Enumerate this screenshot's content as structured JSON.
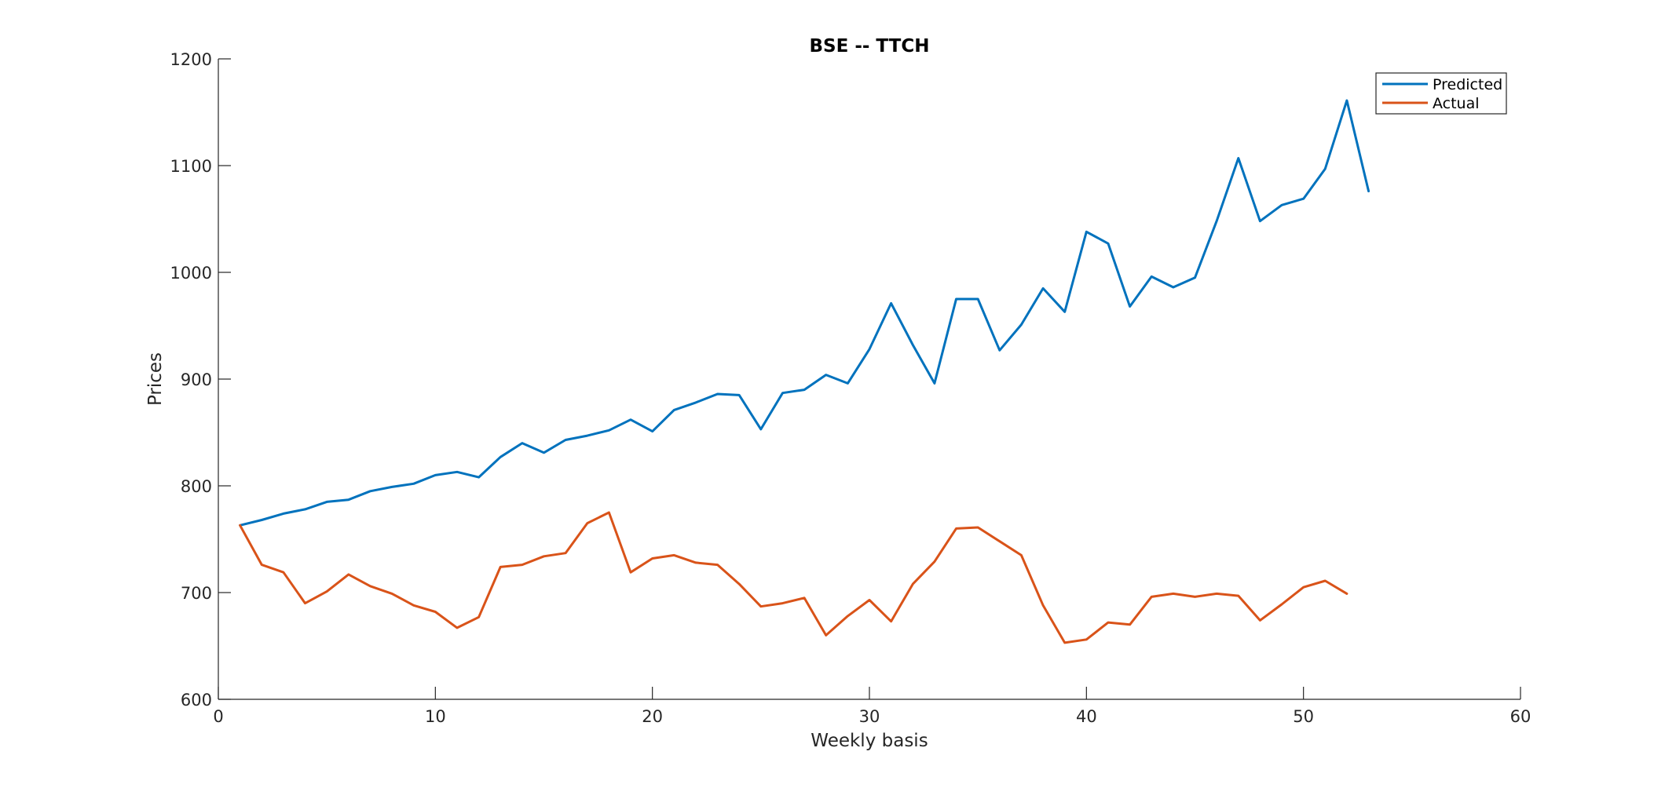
{
  "chart_data": {
    "type": "line",
    "title": "BSE -- TTCH",
    "xlabel": "Weekly basis",
    "ylabel": "Prices",
    "xlim": [
      0,
      60
    ],
    "ylim": [
      600,
      1200
    ],
    "xticks": [
      0,
      10,
      20,
      30,
      40,
      50,
      60
    ],
    "yticks": [
      600,
      700,
      800,
      900,
      1000,
      1100,
      1200
    ],
    "grid": false,
    "legend_position": "top-right",
    "series": [
      {
        "name": "Predicted",
        "color": "#0072BD",
        "x": [
          1,
          2,
          3,
          4,
          5,
          6,
          7,
          8,
          9,
          10,
          11,
          12,
          13,
          14,
          15,
          16,
          17,
          18,
          19,
          20,
          21,
          22,
          23,
          24,
          25,
          26,
          27,
          28,
          29,
          30,
          31,
          32,
          33,
          34,
          35,
          36,
          37,
          38,
          39,
          40,
          41,
          42,
          43,
          44,
          45,
          46,
          47,
          48,
          49,
          50,
          51,
          52,
          53
        ],
        "values": [
          763,
          768,
          774,
          778,
          785,
          787,
          795,
          799,
          802,
          810,
          813,
          808,
          827,
          840,
          831,
          843,
          847,
          852,
          862,
          851,
          871,
          878,
          886,
          885,
          853,
          887,
          890,
          904,
          896,
          928,
          971,
          932,
          896,
          975,
          975,
          927,
          951,
          985,
          963,
          1038,
          1027,
          968,
          996,
          986,
          995,
          1048,
          1107,
          1048,
          1063,
          1069,
          1097,
          1161,
          1076
        ]
      },
      {
        "name": "Actual",
        "color": "#D95319",
        "x": [
          1,
          2,
          3,
          4,
          5,
          6,
          7,
          8,
          9,
          10,
          11,
          12,
          13,
          14,
          15,
          16,
          17,
          18,
          19,
          20,
          21,
          22,
          23,
          24,
          25,
          26,
          27,
          28,
          29,
          30,
          31,
          32,
          33,
          34,
          35,
          36,
          37,
          38,
          39,
          40,
          41,
          42,
          43,
          44,
          45,
          46,
          47,
          48,
          49,
          50,
          51,
          52
        ],
        "values": [
          763,
          726,
          719,
          690,
          701,
          717,
          706,
          699,
          688,
          682,
          667,
          677,
          724,
          726,
          734,
          737,
          765,
          775,
          719,
          732,
          735,
          728,
          726,
          708,
          687,
          690,
          695,
          660,
          678,
          693,
          673,
          708,
          729,
          760,
          761,
          748,
          735,
          688,
          653,
          656,
          672,
          670,
          696,
          699,
          696,
          699,
          697,
          674,
          689,
          705,
          711,
          699
        ]
      }
    ]
  }
}
